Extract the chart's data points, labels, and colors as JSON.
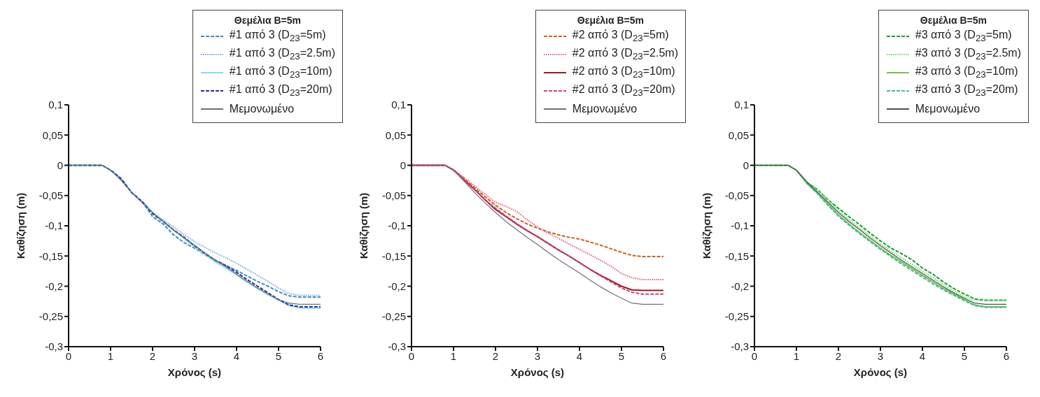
{
  "chart_data": [
    {
      "type": "line",
      "legend_title": "Θεμέλια B=5m",
      "xlabel": "Χρόνος (s)",
      "ylabel": "Καθίζηση (m)",
      "legend": "top right",
      "xlim": [
        0,
        6
      ],
      "xticks": [
        0,
        1,
        2,
        3,
        4,
        5,
        6
      ],
      "ylim": [
        -0.3,
        0.1
      ],
      "yticks": [
        {
          "value": -0.3,
          "label": "-0,3"
        },
        {
          "value": -0.25,
          "label": "-0,25"
        },
        {
          "value": -0.2,
          "label": "-0,2"
        },
        {
          "value": -0.15,
          "label": "-0,15"
        },
        {
          "value": -0.1,
          "label": "-0,1"
        },
        {
          "value": -0.05,
          "label": "-0,05"
        },
        {
          "value": 0,
          "label": "0"
        },
        {
          "value": 0.05,
          "label": "0,05"
        },
        {
          "value": 0.1,
          "label": "0,1"
        }
      ],
      "x": [
        0,
        0.5,
        0.8,
        1,
        1.25,
        1.5,
        1.75,
        2,
        2.25,
        2.5,
        2.75,
        3,
        3.25,
        3.5,
        3.75,
        4,
        4.25,
        4.5,
        4.75,
        5,
        5.25,
        5.5,
        6
      ],
      "series": [
        {
          "name": "#1 από 3 (D$_{23}$=5m)",
          "color": "#3a8fc8",
          "line_style": "dashed",
          "values": [
            0,
            0,
            0,
            -0.008,
            -0.022,
            -0.045,
            -0.06,
            -0.085,
            -0.097,
            -0.115,
            -0.128,
            -0.137,
            -0.148,
            -0.158,
            -0.166,
            -0.174,
            -0.183,
            -0.192,
            -0.2,
            -0.209,
            -0.216,
            -0.218,
            -0.218
          ]
        },
        {
          "name": "#1 από 3 (D$_{23}$=2.5m)",
          "color": "#7fa6e0",
          "line_style": "dotted",
          "values": [
            0,
            0,
            0,
            -0.008,
            -0.022,
            -0.045,
            -0.06,
            -0.078,
            -0.09,
            -0.102,
            -0.115,
            -0.126,
            -0.136,
            -0.145,
            -0.153,
            -0.162,
            -0.172,
            -0.182,
            -0.192,
            -0.203,
            -0.212,
            -0.215,
            -0.215
          ]
        },
        {
          "name": "#1 από 3 (D$_{23}$=10m)",
          "color": "#7fe0f0",
          "line_style": "solid",
          "values": [
            0,
            0,
            0,
            -0.008,
            -0.022,
            -0.045,
            -0.06,
            -0.078,
            -0.092,
            -0.107,
            -0.121,
            -0.135,
            -0.148,
            -0.16,
            -0.17,
            -0.181,
            -0.193,
            -0.204,
            -0.214,
            -0.223,
            -0.232,
            -0.236,
            -0.236
          ]
        },
        {
          "name": "#1 από 3 (D$_{23}$=20m)",
          "color": "#2a2aa0",
          "line_style": "dashed",
          "values": [
            0,
            0,
            0,
            -0.008,
            -0.022,
            -0.045,
            -0.06,
            -0.08,
            -0.093,
            -0.107,
            -0.119,
            -0.133,
            -0.146,
            -0.157,
            -0.166,
            -0.177,
            -0.189,
            -0.2,
            -0.211,
            -0.222,
            -0.231,
            -0.234,
            -0.234
          ]
        },
        {
          "name": "Μεμονωμένο",
          "color": "#707070",
          "line_style": "solid",
          "values": [
            0,
            0,
            0,
            -0.008,
            -0.025,
            -0.045,
            -0.062,
            -0.078,
            -0.093,
            -0.107,
            -0.12,
            -0.132,
            -0.145,
            -0.157,
            -0.168,
            -0.18,
            -0.192,
            -0.203,
            -0.213,
            -0.222,
            -0.228,
            -0.23,
            -0.23
          ]
        }
      ]
    },
    {
      "type": "line",
      "legend_title": "Θεμέλια B=5m",
      "xlabel": "Χρόνος (s)",
      "ylabel": "Καθίζηση (m)",
      "legend": "top right",
      "xlim": [
        0,
        6
      ],
      "xticks": [
        0,
        1,
        2,
        3,
        4,
        5,
        6
      ],
      "ylim": [
        -0.3,
        0.1
      ],
      "yticks": [
        {
          "value": -0.3,
          "label": "-0,3"
        },
        {
          "value": -0.25,
          "label": "-0,25"
        },
        {
          "value": -0.2,
          "label": "-0,2"
        },
        {
          "value": -0.15,
          "label": "-0,15"
        },
        {
          "value": -0.1,
          "label": "-0,1"
        },
        {
          "value": -0.05,
          "label": "-0,05"
        },
        {
          "value": 0,
          "label": "0"
        },
        {
          "value": 0.05,
          "label": "0,05"
        },
        {
          "value": 0.1,
          "label": "0,1"
        }
      ],
      "x": [
        0,
        0.5,
        0.8,
        1,
        1.25,
        1.5,
        1.75,
        2,
        2.25,
        2.5,
        2.75,
        3,
        3.25,
        3.5,
        3.75,
        4,
        4.25,
        4.5,
        4.75,
        5,
        5.25,
        5.5,
        6
      ],
      "series": [
        {
          "name": "#2 από 3 (D$_{23}$=5m)",
          "color": "#d0601a",
          "line_style": "dashed",
          "values": [
            0,
            0,
            0,
            -0.008,
            -0.022,
            -0.037,
            -0.052,
            -0.066,
            -0.078,
            -0.088,
            -0.097,
            -0.104,
            -0.11,
            -0.115,
            -0.119,
            -0.122,
            -0.127,
            -0.132,
            -0.138,
            -0.144,
            -0.149,
            -0.151,
            -0.151
          ]
        },
        {
          "name": "#2 από 3 (D$_{23}$=2.5m)",
          "color": "#e0607a",
          "line_style": "dotted",
          "values": [
            0,
            0,
            0,
            -0.007,
            -0.02,
            -0.034,
            -0.048,
            -0.061,
            -0.068,
            -0.076,
            -0.09,
            -0.102,
            -0.112,
            -0.121,
            -0.13,
            -0.139,
            -0.148,
            -0.157,
            -0.167,
            -0.179,
            -0.186,
            -0.189,
            -0.189
          ]
        },
        {
          "name": "#2 από 3 (D$_{23}$=10m)",
          "color": "#a01820",
          "line_style": "solid",
          "values": [
            0,
            0,
            0,
            -0.008,
            -0.024,
            -0.04,
            -0.057,
            -0.073,
            -0.085,
            -0.097,
            -0.108,
            -0.118,
            -0.129,
            -0.14,
            -0.15,
            -0.161,
            -0.172,
            -0.182,
            -0.191,
            -0.2,
            -0.206,
            -0.207,
            -0.207
          ]
        },
        {
          "name": "#2 από 3 (D$_{23}$=20m)",
          "color": "#d04080",
          "line_style": "dashed",
          "values": [
            0,
            0,
            0,
            -0.008,
            -0.024,
            -0.04,
            -0.057,
            -0.071,
            -0.084,
            -0.096,
            -0.108,
            -0.118,
            -0.129,
            -0.14,
            -0.15,
            -0.161,
            -0.172,
            -0.183,
            -0.193,
            -0.203,
            -0.21,
            -0.213,
            -0.213
          ]
        },
        {
          "name": "Μεμονωμένο",
          "color": "#707070",
          "line_style": "solid",
          "values": [
            0,
            0,
            0,
            -0.008,
            -0.026,
            -0.045,
            -0.062,
            -0.078,
            -0.093,
            -0.106,
            -0.119,
            -0.131,
            -0.144,
            -0.156,
            -0.167,
            -0.178,
            -0.19,
            -0.201,
            -0.211,
            -0.22,
            -0.228,
            -0.23,
            -0.23
          ]
        }
      ]
    },
    {
      "type": "line",
      "legend_title": "Θεμέλια B=5m",
      "xlabel": "Χρόνος (s)",
      "ylabel": "Καθίζηση (m)",
      "legend": "top right",
      "xlim": [
        0,
        6
      ],
      "xticks": [
        0,
        1,
        2,
        3,
        4,
        5,
        6
      ],
      "ylim": [
        -0.3,
        0.1
      ],
      "yticks": [
        {
          "value": -0.3,
          "label": "-0,3"
        },
        {
          "value": -0.25,
          "label": "-0,25"
        },
        {
          "value": -0.2,
          "label": "-0,2"
        },
        {
          "value": -0.15,
          "label": "-0,15"
        },
        {
          "value": -0.1,
          "label": "-0,1"
        },
        {
          "value": -0.05,
          "label": "-0,05"
        },
        {
          "value": 0,
          "label": "0"
        },
        {
          "value": 0.05,
          "label": "0,05"
        },
        {
          "value": 0.1,
          "label": "0,1"
        }
      ],
      "x": [
        0,
        0.5,
        0.8,
        1,
        1.25,
        1.5,
        1.75,
        2,
        2.25,
        2.5,
        2.75,
        3,
        3.25,
        3.5,
        3.75,
        4,
        4.25,
        4.5,
        4.75,
        5,
        5.25,
        5.5,
        6
      ],
      "series": [
        {
          "name": "#3 από 3 (D$_{23}$=5m)",
          "color": "#1e9a3a",
          "line_style": "dashed",
          "values": [
            0,
            0,
            0,
            -0.008,
            -0.028,
            -0.04,
            -0.057,
            -0.071,
            -0.085,
            -0.098,
            -0.112,
            -0.125,
            -0.137,
            -0.146,
            -0.156,
            -0.17,
            -0.18,
            -0.193,
            -0.204,
            -0.213,
            -0.221,
            -0.223,
            -0.223
          ]
        },
        {
          "name": "#3 από 3 (D$_{23}$=2.5m)",
          "color": "#60e060",
          "line_style": "dotted",
          "values": [
            0,
            0,
            0,
            -0.008,
            -0.028,
            -0.04,
            -0.057,
            -0.075,
            -0.09,
            -0.103,
            -0.117,
            -0.13,
            -0.142,
            -0.153,
            -0.164,
            -0.175,
            -0.186,
            -0.197,
            -0.208,
            -0.218,
            -0.223,
            -0.224,
            -0.224
          ]
        },
        {
          "name": "#3 από 3 (D$_{23}$=10m)",
          "color": "#7cc050",
          "line_style": "solid",
          "values": [
            0,
            0,
            0,
            -0.008,
            -0.03,
            -0.046,
            -0.064,
            -0.082,
            -0.097,
            -0.111,
            -0.124,
            -0.137,
            -0.149,
            -0.16,
            -0.171,
            -0.182,
            -0.193,
            -0.204,
            -0.213,
            -0.222,
            -0.231,
            -0.234,
            -0.234
          ]
        },
        {
          "name": "#3 από 3 (D$_{23}$=20m)",
          "color": "#40c090",
          "line_style": "dashed",
          "values": [
            0,
            0,
            0,
            -0.008,
            -0.03,
            -0.047,
            -0.066,
            -0.084,
            -0.099,
            -0.113,
            -0.126,
            -0.139,
            -0.151,
            -0.163,
            -0.174,
            -0.185,
            -0.196,
            -0.206,
            -0.215,
            -0.224,
            -0.232,
            -0.235,
            -0.235
          ]
        },
        {
          "name": "Μεμονωμένο",
          "color": "#505050",
          "line_style": "solid",
          "values": [
            0,
            0,
            0,
            -0.008,
            -0.028,
            -0.044,
            -0.061,
            -0.078,
            -0.093,
            -0.106,
            -0.12,
            -0.133,
            -0.145,
            -0.157,
            -0.168,
            -0.179,
            -0.19,
            -0.201,
            -0.211,
            -0.22,
            -0.228,
            -0.23,
            -0.23
          ]
        }
      ]
    }
  ]
}
